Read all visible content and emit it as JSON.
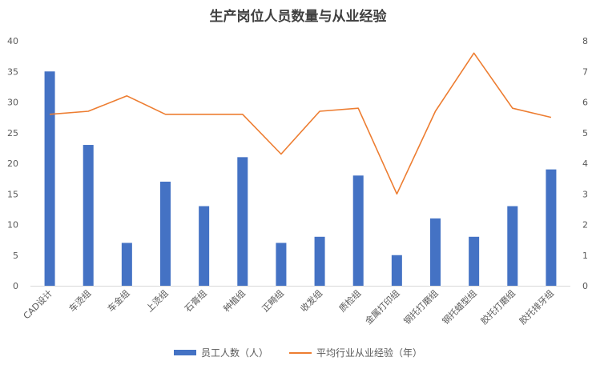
{
  "chart_data": {
    "type": "bar",
    "title": "生产岗位人员数量与从业经验",
    "categories": [
      "CAD设计",
      "车烫组",
      "车金组",
      "上烫组",
      "石膏组",
      "种植组",
      "正畸组",
      "收发组",
      "质检组",
      "金属打印组",
      "钢托打磨组",
      "钢托蜡型组",
      "胶托打磨组",
      "胶托排牙组"
    ],
    "series": [
      {
        "name": "员工人数（人）",
        "type": "bar",
        "axis": "left",
        "color": "#4472C4",
        "values": [
          35,
          23,
          7,
          17,
          13,
          21,
          7,
          8,
          18,
          5,
          11,
          8,
          13,
          19
        ]
      },
      {
        "name": "平均行业从业经验（年）",
        "type": "line",
        "axis": "right",
        "color": "#ED7D31",
        "values": [
          5.6,
          5.7,
          6.2,
          5.6,
          5.6,
          5.6,
          4.3,
          5.7,
          5.8,
          3.0,
          5.7,
          7.6,
          5.8,
          5.5
        ]
      }
    ],
    "ylim_left": [
      0,
      40
    ],
    "yticks_left": [
      "0",
      "5",
      "10",
      "15",
      "20",
      "25",
      "30",
      "35",
      "40"
    ],
    "ylim_right": [
      0,
      8
    ],
    "yticks_right": [
      "0",
      "1",
      "2",
      "3",
      "4",
      "5",
      "6",
      "7",
      "8"
    ],
    "grid": false,
    "legend": "bottom"
  }
}
